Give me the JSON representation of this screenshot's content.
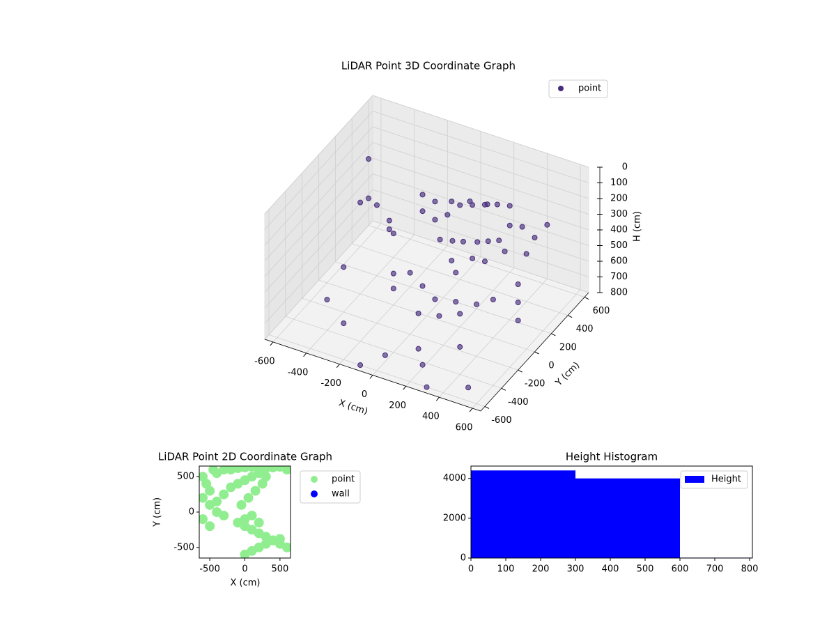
{
  "chart_data": [
    {
      "type": "scatter3d",
      "title": "LiDAR Point 3D Coordinate Graph",
      "xlabel": "X (cm)",
      "ylabel": "Y (cm)",
      "zlabel": "H (cm)",
      "xlim": [
        -650,
        650
      ],
      "ylim": [
        -650,
        650
      ],
      "zlim": [
        800,
        0
      ],
      "xticks": [
        -600,
        -400,
        -200,
        0,
        200,
        400,
        600
      ],
      "yticks": [
        -600,
        -400,
        -200,
        0,
        200,
        400,
        600
      ],
      "zticks": [
        0,
        100,
        200,
        300,
        400,
        500,
        600,
        700,
        800
      ],
      "grid": true,
      "legend": "upper right",
      "series": [
        {
          "name": "point",
          "color": "#472d7b",
          "x": [
            50,
            100,
            150,
            200,
            250,
            0,
            -50,
            -100,
            300,
            350,
            120,
            180,
            220,
            80,
            30,
            -150,
            -200,
            260,
            320,
            140,
            60,
            200,
            100,
            -50,
            250,
            150,
            -250,
            -300,
            -350,
            -100,
            0,
            100,
            200,
            300,
            350,
            -200,
            -150,
            50,
            150,
            250,
            -400,
            -500,
            -600,
            500,
            550,
            600,
            -450,
            400,
            450,
            -300,
            0,
            200,
            350,
            500,
            -550,
            -600,
            100,
            -100,
            300,
            450
          ],
          "y": [
            300,
            350,
            400,
            450,
            500,
            250,
            200,
            300,
            400,
            450,
            200,
            250,
            300,
            150,
            100,
            250,
            350,
            350,
            300,
            450,
            400,
            150,
            100,
            400,
            200,
            50,
            100,
            150,
            250,
            0,
            -50,
            -100,
            -50,
            0,
            100,
            0,
            -100,
            -200,
            -150,
            -100,
            200,
            300,
            400,
            100,
            0,
            -100,
            -300,
            500,
            550,
            -400,
            -500,
            -450,
            -300,
            -500,
            100,
            500,
            -300,
            -600,
            -600,
            300
          ],
          "z": [
            250,
            260,
            270,
            280,
            300,
            300,
            320,
            280,
            350,
            370,
            400,
            410,
            420,
            380,
            360,
            330,
            300,
            430,
            450,
            300,
            280,
            450,
            470,
            320,
            480,
            500,
            420,
            440,
            460,
            560,
            580,
            600,
            610,
            620,
            630,
            600,
            620,
            650,
            660,
            640,
            350,
            400,
            520,
            480,
            520,
            560,
            680,
            450,
            380,
            720,
            760,
            780,
            700,
            790,
            740,
            300,
            800,
            800,
            800,
            420
          ]
        }
      ]
    },
    {
      "type": "scatter",
      "title": "LiDAR Point 2D Coordinate Graph",
      "xlabel": "X (cm)",
      "ylabel": "Y (cm)",
      "xlim": [
        -650,
        650
      ],
      "ylim": [
        -650,
        650
      ],
      "xticks": [
        -500,
        0,
        500
      ],
      "yticks": [
        -500,
        0,
        500
      ],
      "legend": "outside right",
      "series": [
        {
          "name": "point",
          "color": "#90ee90",
          "x": [
            -600,
            -550,
            -500,
            -450,
            -400,
            -300,
            -200,
            -100,
            0,
            100,
            200,
            300,
            400,
            500,
            600,
            -600,
            -500,
            -400,
            -300,
            -200,
            -100,
            0,
            100,
            200,
            300,
            -600,
            -500,
            -400,
            -300,
            -100,
            0,
            100,
            200,
            300,
            400,
            500,
            600,
            0,
            100,
            200,
            300,
            400,
            500,
            0,
            100,
            200,
            -50,
            50,
            150,
            250
          ],
          "y": [
            500,
            400,
            300,
            600,
            550,
            600,
            600,
            620,
            630,
            640,
            600,
            620,
            630,
            640,
            600,
            200,
            100,
            150,
            250,
            350,
            400,
            450,
            500,
            550,
            500,
            -100,
            -200,
            0,
            -50,
            -150,
            -200,
            -250,
            -300,
            -350,
            -400,
            -450,
            -500,
            -600,
            -550,
            -500,
            -450,
            -400,
            -380,
            -100,
            -50,
            -150,
            100,
            200,
            300,
            400
          ]
        },
        {
          "name": "wall",
          "color": "#0000ff",
          "x": [],
          "y": []
        }
      ]
    },
    {
      "type": "histogram",
      "title": "Height Histogram",
      "xlim": [
        0,
        808
      ],
      "ylim": [
        0,
        4620
      ],
      "xticks": [
        0,
        100,
        200,
        300,
        400,
        500,
        600,
        700,
        800
      ],
      "yticks": [
        0,
        2000,
        4000
      ],
      "legend": "upper right",
      "bins": [
        0,
        300,
        600,
        806
      ],
      "series": [
        {
          "name": "Height",
          "color": "#0000ff",
          "values": [
            4400,
            4000,
            20
          ]
        }
      ]
    }
  ]
}
